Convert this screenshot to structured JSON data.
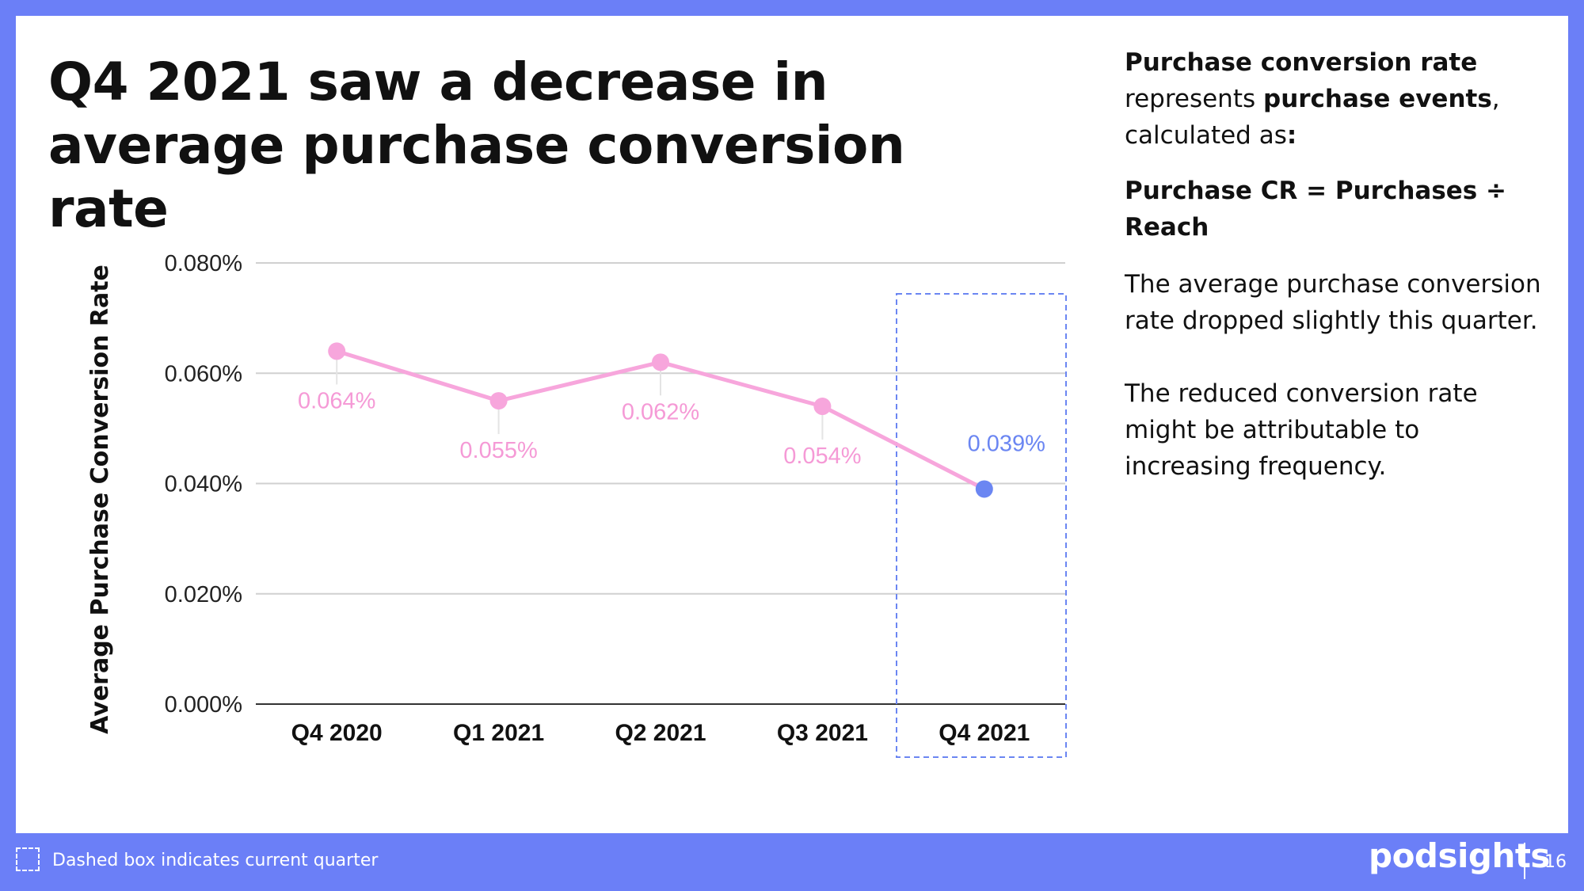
{
  "slide": {
    "title": "Q4 2021 saw a decrease in average purchase conversion rate"
  },
  "side": {
    "p1_bold1": "Purchase conversion rate",
    "p1_text1": "represents",
    "p1_bold2": "purchase events",
    "p1_text2": ",",
    "p1_text3": "calculated as",
    "p1_colon": ":",
    "formula": "Purchase CR = Purchases ÷ Reach",
    "p3": "The average purchase conversion rate dropped slightly this quarter.",
    "p4": "The reduced conversion rate might be attributable to increasing frequency."
  },
  "footer": {
    "note": "Dashed box indicates current quarter",
    "brand": "podsights",
    "page_number": "16"
  },
  "colors": {
    "frame": "#6b7ff7",
    "series": "#f7a6dc",
    "highlight": "#6b86f2",
    "label": "#f59ad6",
    "grid": "#d0d0d0"
  },
  "chart_data": {
    "type": "line",
    "ylabel": "Average Purchase Conversion Rate",
    "xlabel": "",
    "categories": [
      "Q4 2020",
      "Q1 2021",
      "Q2 2021",
      "Q3 2021",
      "Q4 2021"
    ],
    "values": [
      0.064,
      0.055,
      0.062,
      0.054,
      0.039
    ],
    "data_labels": [
      "0.064%",
      "0.055%",
      "0.062%",
      "0.054%",
      "0.039%"
    ],
    "yticks": [
      0,
      0.02,
      0.04,
      0.06,
      0.08
    ],
    "ytick_labels": [
      "0.000%",
      "0.020%",
      "0.040%",
      "0.060%",
      "0.080%"
    ],
    "ylim": [
      0,
      0.08
    ],
    "grid": true,
    "highlight_category": "Q4 2021"
  }
}
